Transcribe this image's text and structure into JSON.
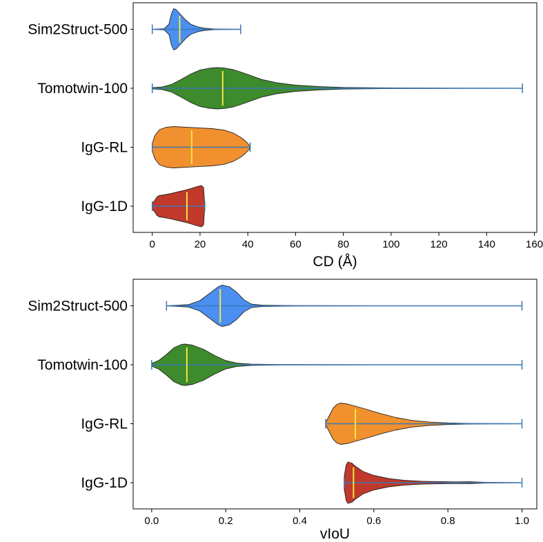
{
  "chart_data": [
    {
      "type": "violin",
      "xlabel": "CD (Å)",
      "ylabel": "",
      "xlim": [
        -8,
        161
      ],
      "xticks": [
        0,
        20,
        40,
        60,
        80,
        100,
        120,
        140,
        160
      ],
      "xtick_labels": [
        "0",
        "20",
        "40",
        "60",
        "80",
        "100",
        "120",
        "140",
        "160"
      ],
      "grid": false,
      "categories": [
        "Sim2Struct-500",
        "Tomotwin-100",
        "IgG-RL",
        "IgG-1D"
      ],
      "series": [
        {
          "category": "Sim2Struct-500",
          "color": "#4b8ff0",
          "min": 0,
          "max": 37,
          "median": 11.5,
          "density": [
            [
              0,
              0
            ],
            [
              5,
              0.03
            ],
            [
              7,
              0.25
            ],
            [
              8,
              0.75
            ],
            [
              9,
              1.0
            ],
            [
              10,
              0.95
            ],
            [
              12,
              0.7
            ],
            [
              14,
              0.45
            ],
            [
              16,
              0.25
            ],
            [
              19,
              0.12
            ],
            [
              22,
              0.05
            ],
            [
              26,
              0.02
            ],
            [
              30,
              0.01
            ],
            [
              37,
              0
            ]
          ]
        },
        {
          "category": "Tomotwin-100",
          "color": "#3d8b2c",
          "min": 0,
          "max": 155,
          "median": 29.5,
          "density": [
            [
              0,
              0.03
            ],
            [
              4,
              0.06
            ],
            [
              8,
              0.18
            ],
            [
              12,
              0.42
            ],
            [
              16,
              0.68
            ],
            [
              20,
              0.88
            ],
            [
              24,
              0.97
            ],
            [
              27,
              1.0
            ],
            [
              30,
              0.98
            ],
            [
              34,
              0.9
            ],
            [
              38,
              0.75
            ],
            [
              42,
              0.58
            ],
            [
              46,
              0.42
            ],
            [
              52,
              0.27
            ],
            [
              60,
              0.15
            ],
            [
              70,
              0.08
            ],
            [
              80,
              0.04
            ],
            [
              100,
              0.015
            ],
            [
              130,
              0.005
            ],
            [
              155,
              0
            ]
          ]
        },
        {
          "category": "IgG-RL",
          "color": "#f0902e",
          "min": 0,
          "max": 41,
          "median": 16.5,
          "density": [
            [
              0,
              0.18
            ],
            [
              1,
              0.55
            ],
            [
              3,
              0.85
            ],
            [
              6,
              0.97
            ],
            [
              9,
              1.0
            ],
            [
              14,
              0.97
            ],
            [
              20,
              0.93
            ],
            [
              25,
              0.9
            ],
            [
              30,
              0.83
            ],
            [
              34,
              0.68
            ],
            [
              37,
              0.48
            ],
            [
              39,
              0.3
            ],
            [
              40.5,
              0.12
            ],
            [
              41,
              0
            ]
          ]
        },
        {
          "category": "IgG-1D",
          "color": "#c0392b",
          "min": 0,
          "max": 22,
          "median": 14.5,
          "density": [
            [
              0,
              0.12
            ],
            [
              1,
              0.28
            ],
            [
              2,
              0.45
            ],
            [
              3,
              0.52
            ],
            [
              5,
              0.55
            ],
            [
              8,
              0.62
            ],
            [
              11,
              0.7
            ],
            [
              14,
              0.78
            ],
            [
              16,
              0.85
            ],
            [
              18,
              0.92
            ],
            [
              19.5,
              0.97
            ],
            [
              20.5,
              1.0
            ],
            [
              21.5,
              0.9
            ],
            [
              22,
              0
            ]
          ]
        }
      ]
    },
    {
      "type": "violin",
      "xlabel": "vIoU",
      "ylabel": "",
      "xlim": [
        -0.05,
        1.04
      ],
      "xticks": [
        0,
        0.2,
        0.4,
        0.6,
        0.8,
        1.0
      ],
      "xtick_labels": [
        "0.0",
        "0.2",
        "0.4",
        "0.6",
        "0.8",
        "1.0"
      ],
      "grid": false,
      "categories": [
        "Sim2Struct-500",
        "Tomotwin-100",
        "IgG-RL",
        "IgG-1D"
      ],
      "series": [
        {
          "category": "Sim2Struct-500",
          "color": "#4b8ff0",
          "min": 0.04,
          "max": 1.0,
          "median": 0.185,
          "density": [
            [
              0.04,
              0
            ],
            [
              0.1,
              0.06
            ],
            [
              0.13,
              0.25
            ],
            [
              0.16,
              0.65
            ],
            [
              0.18,
              0.92
            ],
            [
              0.19,
              1.0
            ],
            [
              0.21,
              0.92
            ],
            [
              0.23,
              0.65
            ],
            [
              0.25,
              0.28
            ],
            [
              0.27,
              0.08
            ],
            [
              0.3,
              0.03
            ],
            [
              0.4,
              0.01
            ],
            [
              0.6,
              0.004
            ],
            [
              1.0,
              0
            ]
          ]
        },
        {
          "category": "Tomotwin-100",
          "color": "#3d8b2c",
          "min": 0.0,
          "max": 1.0,
          "median": 0.095,
          "density": [
            [
              0,
              0.06
            ],
            [
              0.02,
              0.22
            ],
            [
              0.04,
              0.5
            ],
            [
              0.06,
              0.82
            ],
            [
              0.08,
              0.98
            ],
            [
              0.09,
              1.0
            ],
            [
              0.11,
              0.95
            ],
            [
              0.14,
              0.75
            ],
            [
              0.17,
              0.45
            ],
            [
              0.2,
              0.2
            ],
            [
              0.23,
              0.08
            ],
            [
              0.27,
              0.03
            ],
            [
              0.35,
              0.01
            ],
            [
              0.6,
              0.004
            ],
            [
              1.0,
              0
            ]
          ]
        },
        {
          "category": "IgG-RL",
          "color": "#f0902e",
          "min": 0.47,
          "max": 1.0,
          "median": 0.55,
          "density": [
            [
              0.47,
              0.05
            ],
            [
              0.48,
              0.4
            ],
            [
              0.49,
              0.75
            ],
            [
              0.5,
              0.93
            ],
            [
              0.51,
              1.0
            ],
            [
              0.53,
              0.95
            ],
            [
              0.55,
              0.85
            ],
            [
              0.58,
              0.7
            ],
            [
              0.62,
              0.48
            ],
            [
              0.66,
              0.3
            ],
            [
              0.7,
              0.17
            ],
            [
              0.75,
              0.08
            ],
            [
              0.8,
              0.04
            ],
            [
              0.85,
              0.02
            ],
            [
              0.9,
              0.01
            ],
            [
              1.0,
              0
            ]
          ]
        },
        {
          "category": "IgG-1D",
          "color": "#c0392b",
          "min": 0.52,
          "max": 1.0,
          "median": 0.545,
          "density": [
            [
              0.52,
              0.3
            ],
            [
              0.525,
              0.85
            ],
            [
              0.53,
              1.0
            ],
            [
              0.54,
              0.95
            ],
            [
              0.55,
              0.8
            ],
            [
              0.57,
              0.55
            ],
            [
              0.6,
              0.35
            ],
            [
              0.64,
              0.2
            ],
            [
              0.68,
              0.12
            ],
            [
              0.73,
              0.07
            ],
            [
              0.78,
              0.05
            ],
            [
              0.82,
              0.04
            ],
            [
              0.86,
              0.045
            ],
            [
              0.9,
              0.02
            ],
            [
              0.95,
              0.01
            ],
            [
              1.0,
              0
            ]
          ]
        }
      ]
    }
  ]
}
